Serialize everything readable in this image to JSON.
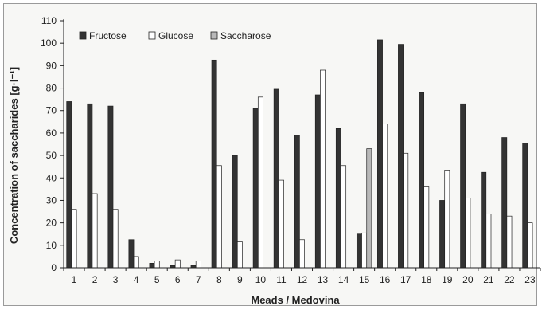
{
  "chart_data": {
    "type": "bar",
    "title": "",
    "xlabel": "Meads / Medovina",
    "ylabel": "Concentration of saccharides [g·l⁻¹]",
    "ylim": [
      0,
      110
    ],
    "yticks": [
      0,
      10,
      20,
      30,
      40,
      50,
      60,
      70,
      80,
      90,
      100,
      110
    ],
    "categories": [
      "1",
      "2",
      "3",
      "4",
      "5",
      "6",
      "7",
      "8",
      "9",
      "10",
      "11",
      "12",
      "13",
      "14",
      "15",
      "16",
      "17",
      "18",
      "19",
      "20",
      "21",
      "22",
      "23"
    ],
    "series": [
      {
        "name": "Fructose",
        "color": "#333333",
        "values": [
          74,
          73,
          72,
          12.5,
          2,
          1,
          1,
          92.5,
          50,
          71,
          79.5,
          59,
          77,
          62,
          15,
          101.5,
          99.5,
          78,
          30,
          73,
          42.5,
          58,
          55.5
        ]
      },
      {
        "name": "Glucose",
        "color": "#ffffff",
        "values": [
          26,
          33,
          26,
          5,
          3,
          3.5,
          3,
          45.5,
          11.5,
          76,
          39,
          12.5,
          88,
          45.5,
          15.5,
          64,
          51,
          36,
          43.5,
          31,
          24,
          23,
          20
        ]
      },
      {
        "name": "Saccharose",
        "color": "#b8b8b8",
        "values": [
          0,
          0,
          0,
          0,
          0,
          0,
          0,
          0,
          0,
          0,
          0,
          0,
          0,
          0,
          53,
          0,
          0,
          0,
          0,
          0,
          0,
          0,
          0
        ]
      }
    ],
    "legend_position": "top-left",
    "grid": false
  }
}
